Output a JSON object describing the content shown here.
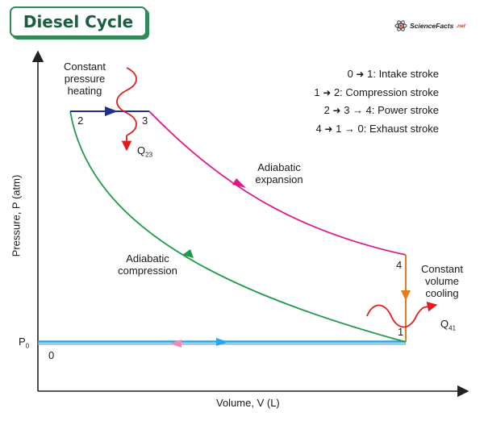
{
  "title": "Diesel Cycle",
  "brand": {
    "name": "ScienceFacts",
    "suffix": ".net"
  },
  "axes": {
    "x_label": "Volume, V (L)",
    "y_label": "Pressure, P (atm)",
    "p0_label": "P",
    "p0_sub": "0"
  },
  "points": {
    "p0": "0",
    "p1": "1",
    "p2": "2",
    "p3": "3",
    "p4": "4"
  },
  "legend": [
    {
      "from": "0",
      "to": "1",
      "text": ": Intake stroke"
    },
    {
      "from": "1",
      "to": "2",
      "text": ": Compression stroke"
    },
    {
      "from": "2",
      "to": "3 → 4",
      "text": ": Power stroke"
    },
    {
      "from": "4",
      "to": "1 → 0",
      "text": ": Exhaust stroke"
    }
  ],
  "annotations": {
    "constant_pressure": "Constant pressure heating",
    "constant_volume": "Constant volume cooling",
    "adiabatic_expansion": "Adiabatic expansion",
    "adiabatic_compression": "Adiabatic compression",
    "q23_label": "Q",
    "q23_sub": "23",
    "q41_label": "Q",
    "q41_sub": "41"
  },
  "colors": {
    "heating": "#1f2f8a",
    "expansion": "#e0198a",
    "cooling": "#e87a1e",
    "compression": "#1e9a4a",
    "intake": "#2aa7e0",
    "exhaust": "#f08bb4",
    "heat": "#e21b1b",
    "brand": "#2e8b57"
  }
}
